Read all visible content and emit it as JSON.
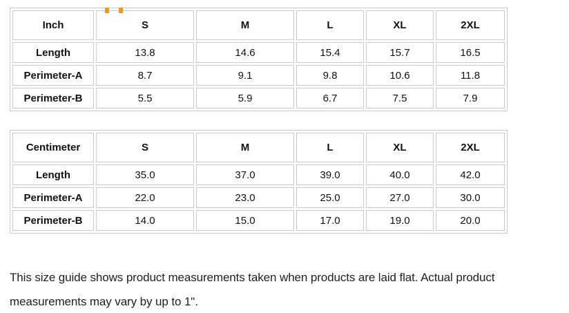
{
  "header": {
    "clipped_letter": "g",
    "accent_color": "#f7941d"
  },
  "tables": [
    {
      "unit_header": "Inch",
      "size_headers": [
        "S",
        "M",
        "L",
        "XL",
        "2XL"
      ],
      "rows": [
        {
          "label": "Length",
          "values": [
            "13.8",
            "14.6",
            "15.4",
            "15.7",
            "16.5"
          ]
        },
        {
          "label": "Perimeter-A",
          "values": [
            "8.7",
            "9.1",
            "9.8",
            "10.6",
            "11.8"
          ]
        },
        {
          "label": "Perimeter-B",
          "values": [
            "5.5",
            "5.9",
            "6.7",
            "7.5",
            "7.9"
          ]
        }
      ]
    },
    {
      "unit_header": "Centimeter",
      "size_headers": [
        "S",
        "M",
        "L",
        "XL",
        "2XL"
      ],
      "rows": [
        {
          "label": "Length",
          "values": [
            "35.0",
            "37.0",
            "39.0",
            "40.0",
            "42.0"
          ]
        },
        {
          "label": "Perimeter-A",
          "values": [
            "22.0",
            "23.0",
            "25.0",
            "27.0",
            "30.0"
          ]
        },
        {
          "label": "Perimeter-B",
          "values": [
            "14.0",
            "15.0",
            "17.0",
            "19.0",
            "20.0"
          ]
        }
      ]
    }
  ],
  "note": "This size guide shows product measurements taken when products are laid flat. Actual product measurements may vary by up to 1\"."
}
